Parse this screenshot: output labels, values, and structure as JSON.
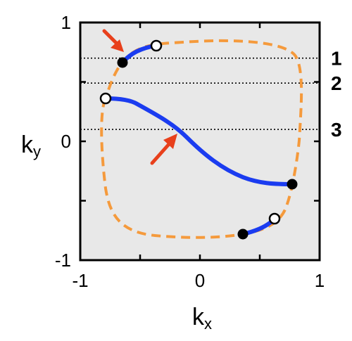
{
  "axes": {
    "x_label_main": "k",
    "x_label_sub": "x",
    "y_label_main": "k",
    "y_label_sub": "y",
    "x_ticks": [
      {
        "value": -1,
        "label": "-1"
      },
      {
        "value": 0,
        "label": "0"
      },
      {
        "value": 1,
        "label": "1"
      }
    ],
    "y_ticks": [
      {
        "value": 1,
        "label": "1"
      },
      {
        "value": 0,
        "label": "0"
      },
      {
        "value": -1,
        "label": "-1"
      }
    ],
    "xlim": [
      -1,
      1
    ],
    "ylim": [
      -1,
      1
    ]
  },
  "horizontal_lines": [
    {
      "ky": 0.7,
      "label": "1"
    },
    {
      "ky": 0.49,
      "label": "2"
    },
    {
      "ky": 0.1,
      "label": "3"
    }
  ],
  "colors": {
    "background": "#e8e8e8",
    "contour": "#f59a3c",
    "arc": "#1b3cf0",
    "arrow": "#e8401c"
  }
}
